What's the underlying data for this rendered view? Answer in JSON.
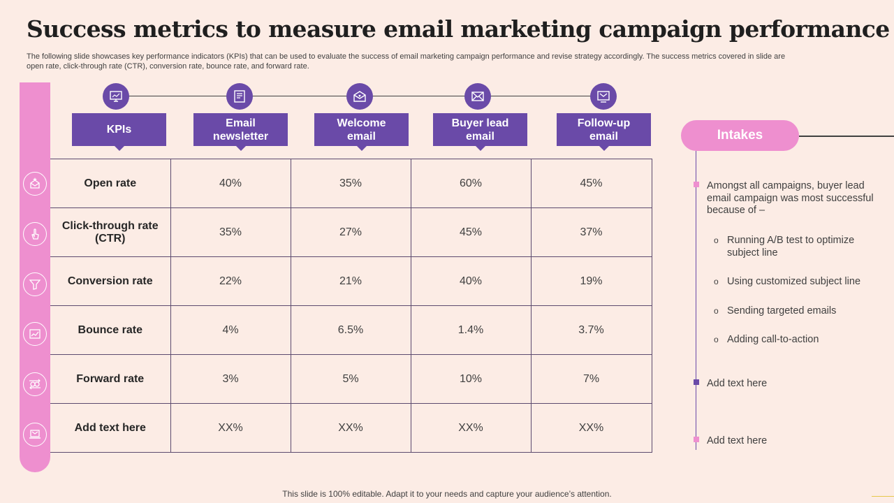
{
  "title": "Success metrics to measure email marketing campaign performance",
  "subtitle": "The following slide showcases key performance indicators (KPIs) that can be used to evaluate the success of email marketing campaign performance and revise strategy accordingly. The success metrics covered in slide are open rate, click-through rate (CTR), conversion rate, bounce rate, and forward rate.",
  "colors": {
    "purple": "#6a4aa8",
    "pink": "#ee8fcf",
    "background": "#fcece5"
  },
  "columns": [
    {
      "label": "KPIs",
      "icon": "kpi-monitor-icon"
    },
    {
      "label": "Email newsletter",
      "icon": "newsletter-icon"
    },
    {
      "label": "Welcome email",
      "icon": "welcome-email-icon"
    },
    {
      "label": "Buyer lead email",
      "icon": "envelope-icon"
    },
    {
      "label": "Follow-up email",
      "icon": "email-screen-icon"
    }
  ],
  "rows": [
    {
      "kpi": "Open rate",
      "icon": "star-envelope-icon",
      "values": [
        "40%",
        "35%",
        "60%",
        "45%"
      ]
    },
    {
      "kpi": "Click-through rate (CTR)",
      "icon": "click-hand-icon",
      "values": [
        "35%",
        "27%",
        "45%",
        "37%"
      ]
    },
    {
      "kpi": "Conversion rate",
      "icon": "funnel-icon",
      "values": [
        "22%",
        "21%",
        "40%",
        "19%"
      ]
    },
    {
      "kpi": "Bounce rate",
      "icon": "bounce-chart-icon",
      "values": [
        "4%",
        "6.5%",
        "1.4%",
        "3.7%"
      ]
    },
    {
      "kpi": "Forward rate",
      "icon": "transfer-money-icon",
      "values": [
        "3%",
        "5%",
        "10%",
        "7%"
      ]
    },
    {
      "kpi": "Add text here",
      "icon": "laptop-mail-icon",
      "values": [
        "XX%",
        "XX%",
        "XX%",
        "XX%"
      ]
    }
  ],
  "intakes": {
    "heading": "Intakes",
    "main": "Amongst all campaigns, buyer lead email campaign was most successful because of –",
    "sub_items": [
      "Running A/B test to optimize subject line",
      "Using customized subject line",
      "Sending targeted emails",
      "Adding call-to-action"
    ],
    "extra": [
      "Add text here",
      "Add text here"
    ]
  },
  "footer": "This slide is 100% editable. Adapt it to your needs and capture your audience’s attention."
}
